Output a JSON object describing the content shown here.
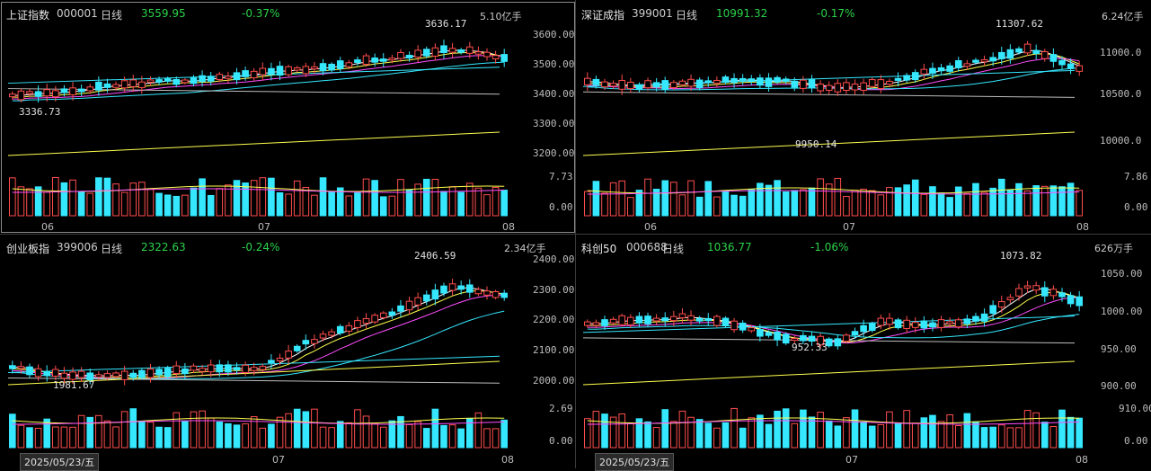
{
  "panels": [
    {
      "name": "上证指数",
      "code": "000001",
      "period": "日线",
      "price": "3559.95",
      "change": "-0.37%",
      "vol_unit": "5.10亿手",
      "price_axis": [
        "3600.00",
        "3500.00",
        "3400.00",
        "3300.00",
        "3200.00"
      ],
      "vol_axis": [
        "7.73",
        "0.00"
      ],
      "month_labels": [
        "06",
        "07",
        "08"
      ],
      "high_label": "3636.17",
      "low_label": "3336.73",
      "date_label": ""
    },
    {
      "name": "深证成指",
      "code": "399001",
      "period": "日线",
      "price": "10991.32",
      "change": "-0.17%",
      "vol_unit": "6.24亿手",
      "price_axis": [
        "11000.0",
        "10500.0",
        "10000.0"
      ],
      "vol_axis": [
        "7.86",
        "0.00"
      ],
      "month_labels": [
        "06",
        "07",
        "08"
      ],
      "high_label": "11307.62",
      "low_label": "9950.14",
      "date_label": ""
    },
    {
      "name": "创业板指",
      "code": "399006",
      "period": "日线",
      "price": "2322.63",
      "change": "-0.24%",
      "vol_unit": "2.34亿手",
      "price_axis": [
        "2400.00",
        "2300.00",
        "2200.00",
        "2100.00",
        "2000.00"
      ],
      "vol_axis": [
        "2.69",
        "0.00"
      ],
      "month_labels": [
        "07",
        "08"
      ],
      "high_label": "2406.59",
      "low_label": "1981.67",
      "date_label": "2025/05/23/五"
    },
    {
      "name": "科创50",
      "code": "000688",
      "period": "日线",
      "price": "1036.77",
      "change": "-1.06%",
      "vol_unit": "626万手",
      "price_axis": [
        "1050.00",
        "1000.00",
        "950.00",
        "900.00"
      ],
      "vol_axis": [
        "910.00",
        "0.00"
      ],
      "month_labels": [
        "07",
        "08"
      ],
      "high_label": "1073.82",
      "low_label": "952.33",
      "date_label": "2025/05/23/五"
    }
  ],
  "colors": {
    "up": "#ff4d4d",
    "down": "#35e8ff",
    "ma5": "#ffffff",
    "ma10": "#ffff4d",
    "ma20": "#ff4dff",
    "ma60": "#35e8ff",
    "ma120": "#bdbdbd",
    "ma250": "#ffff4d"
  }
}
